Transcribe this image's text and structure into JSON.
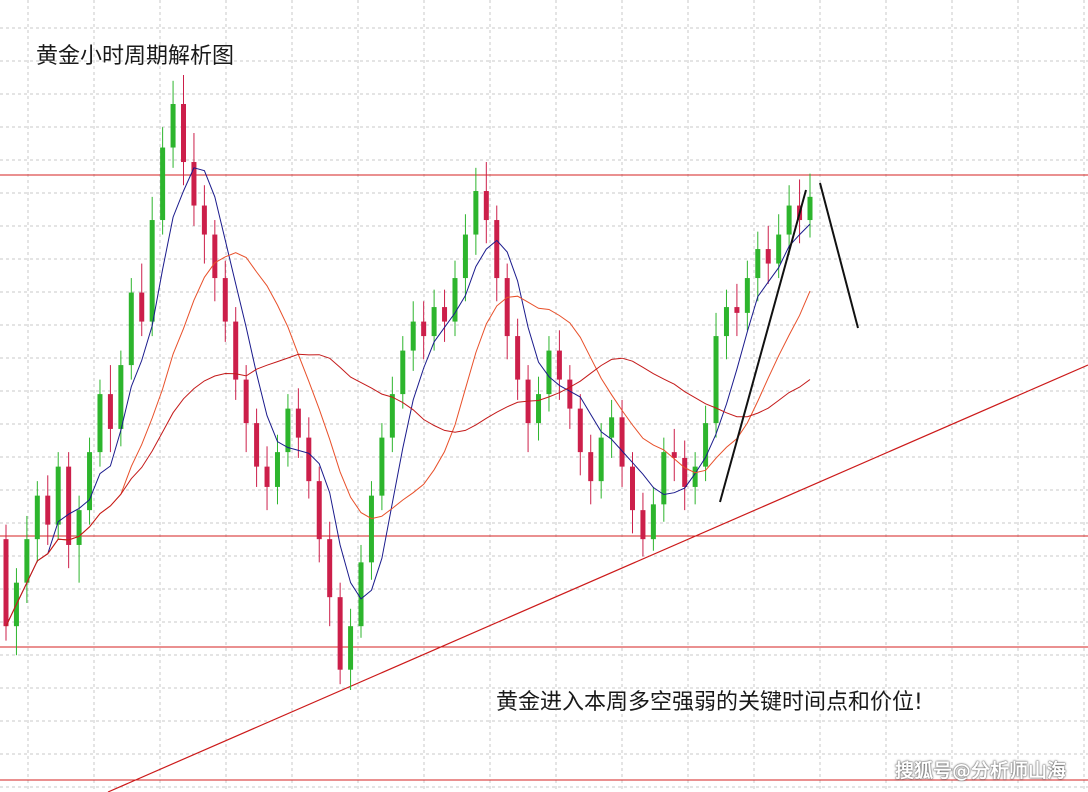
{
  "chart_data": {
    "type": "candlestick",
    "title": "黄金小时周期解析图",
    "annotation": "黄金进入本周多空强弱的关键时间点和价位!",
    "grid": true,
    "colors": {
      "up": "#2db52d",
      "down": "#cc1f4a",
      "ma_short": "#1a1a8c",
      "ma_mid": "#e8502a",
      "ma_long": "#c41a1a",
      "levels": "#d42020",
      "trend": "#cc1a1a",
      "drawing": "#111111"
    },
    "series": [
      {
        "name": "candles",
        "values": [
          [
            470,
            440,
            475,
            435
          ],
          [
            440,
            455,
            460,
            430
          ],
          [
            455,
            470,
            478,
            448
          ],
          [
            470,
            485,
            490,
            462
          ],
          [
            485,
            475,
            492,
            468
          ],
          [
            475,
            495,
            500,
            470
          ],
          [
            495,
            468,
            500,
            460
          ],
          [
            468,
            480,
            485,
            455
          ],
          [
            480,
            500,
            505,
            475
          ],
          [
            500,
            520,
            525,
            495
          ],
          [
            520,
            508,
            530,
            500
          ],
          [
            508,
            530,
            535,
            502
          ],
          [
            530,
            555,
            560,
            525
          ],
          [
            555,
            545,
            565,
            540
          ],
          [
            545,
            580,
            588,
            540
          ],
          [
            580,
            605,
            612,
            575
          ],
          [
            605,
            620,
            628,
            598
          ],
          [
            620,
            600,
            630,
            592
          ],
          [
            600,
            585,
            610,
            578
          ],
          [
            585,
            575,
            592,
            565
          ],
          [
            575,
            560,
            580,
            552
          ],
          [
            560,
            545,
            566,
            538
          ],
          [
            545,
            525,
            550,
            518
          ],
          [
            525,
            510,
            530,
            500
          ],
          [
            510,
            495,
            515,
            488
          ],
          [
            495,
            488,
            502,
            480
          ],
          [
            488,
            500,
            506,
            482
          ],
          [
            500,
            515,
            520,
            495
          ],
          [
            515,
            505,
            522,
            498
          ],
          [
            505,
            490,
            512,
            484
          ],
          [
            490,
            470,
            495,
            462
          ],
          [
            470,
            450,
            476,
            440
          ],
          [
            450,
            425,
            455,
            420
          ],
          [
            425,
            440,
            446,
            418
          ],
          [
            440,
            462,
            468,
            436
          ],
          [
            462,
            485,
            490,
            456
          ],
          [
            485,
            505,
            510,
            480
          ],
          [
            505,
            520,
            526,
            500
          ],
          [
            520,
            535,
            540,
            515
          ],
          [
            535,
            545,
            552,
            528
          ],
          [
            545,
            540,
            552,
            532
          ],
          [
            540,
            550,
            556,
            535
          ],
          [
            550,
            545,
            556,
            538
          ],
          [
            545,
            560,
            566,
            540
          ],
          [
            560,
            575,
            582,
            552
          ],
          [
            575,
            590,
            598,
            568
          ],
          [
            590,
            580,
            600,
            572
          ],
          [
            580,
            560,
            585,
            552
          ],
          [
            560,
            540,
            565,
            532
          ],
          [
            540,
            525,
            546,
            518
          ],
          [
            525,
            510,
            530,
            500
          ],
          [
            510,
            520,
            526,
            504
          ],
          [
            520,
            535,
            540,
            514
          ],
          [
            535,
            525,
            542,
            518
          ],
          [
            525,
            515,
            530,
            508
          ],
          [
            515,
            500,
            520,
            492
          ],
          [
            500,
            490,
            506,
            482
          ],
          [
            490,
            505,
            510,
            484
          ],
          [
            505,
            512,
            518,
            498
          ],
          [
            512,
            495,
            518,
            488
          ],
          [
            495,
            480,
            500,
            472
          ],
          [
            480,
            470,
            486,
            464
          ],
          [
            470,
            482,
            488,
            466
          ],
          [
            482,
            500,
            505,
            476
          ],
          [
            500,
            498,
            508,
            490
          ],
          [
            498,
            488,
            504,
            480
          ],
          [
            488,
            495,
            500,
            482
          ],
          [
            495,
            510,
            516,
            490
          ],
          [
            510,
            540,
            548,
            505
          ],
          [
            540,
            550,
            556,
            532
          ],
          [
            550,
            548,
            558,
            540
          ],
          [
            548,
            560,
            566,
            542
          ],
          [
            560,
            570,
            576,
            552
          ],
          [
            570,
            565,
            578,
            558
          ],
          [
            565,
            575,
            582,
            560
          ],
          [
            575,
            585,
            592,
            568
          ],
          [
            585,
            580,
            594,
            572
          ],
          [
            580,
            588,
            596,
            574
          ]
        ]
      },
      {
        "name": "ma_short"
      },
      {
        "name": "ma_mid"
      },
      {
        "name": "ma_long"
      }
    ]
  },
  "watermark": "搜狐号@分析师山海"
}
